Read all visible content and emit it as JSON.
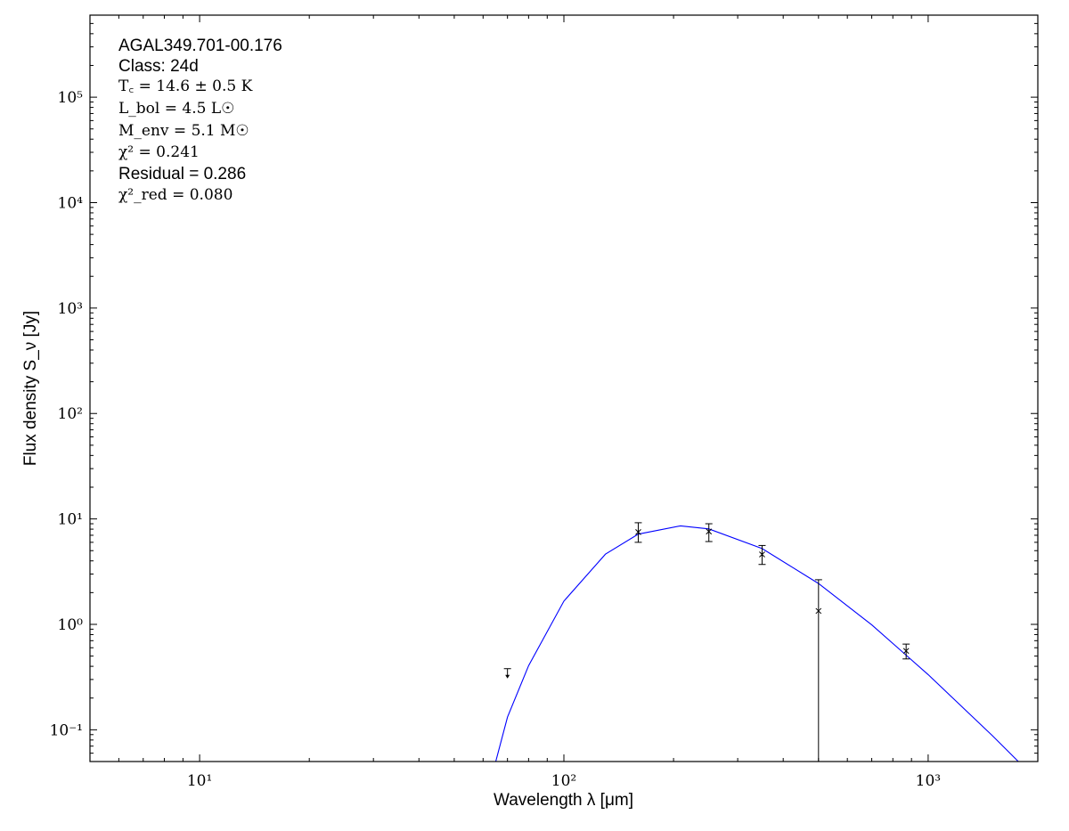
{
  "chart_data": {
    "type": "scatter",
    "title": "",
    "xlabel": "Wavelength λ [μm]",
    "ylabel": "Flux density S_ν [Jy]",
    "xscale": "log",
    "yscale": "log",
    "xlim": [
      5,
      2000
    ],
    "ylim": [
      0.05,
      600000
    ],
    "grid": false,
    "x_ticks": [
      {
        "value": 10,
        "label": "10¹"
      },
      {
        "value": 100,
        "label": "10²"
      },
      {
        "value": 1000,
        "label": "10³"
      }
    ],
    "y_ticks": [
      {
        "value": 0.1,
        "label": "10⁻¹"
      },
      {
        "value": 1,
        "label": "10⁰"
      },
      {
        "value": 10,
        "label": "10¹"
      },
      {
        "value": 100,
        "label": "10²"
      },
      {
        "value": 1000,
        "label": "10³"
      },
      {
        "value": 10000,
        "label": "10⁴"
      },
      {
        "value": 100000,
        "label": "10⁵"
      }
    ],
    "annotations": {
      "source": "AGAL349.701-00.176",
      "class": "Class: 24d",
      "tc": "T꜀ = 14.6 ± 0.5 K",
      "lbol": "L_bol = 4.5 L☉",
      "menv": "M_env = 5.1 M☉",
      "chi2": "χ² = 0.241",
      "residual": "Residual = 0.286",
      "chi2red": "χ²_red = 0.080"
    },
    "measurements": [
      {
        "x": 160,
        "y": 7.5,
        "ylow": 6.0,
        "yhigh": 9.2
      },
      {
        "x": 250,
        "y": 7.6,
        "ylow": 6.1,
        "yhigh": 9.0
      },
      {
        "x": 350,
        "y": 4.6,
        "ylow": 3.7,
        "yhigh": 5.6
      },
      {
        "x": 500,
        "y": 1.34,
        "ylow": 0.001,
        "yhigh": 2.65
      },
      {
        "x": 870,
        "y": 0.56,
        "ylow": 0.47,
        "yhigh": 0.65
      }
    ],
    "upper_limits": [
      {
        "x": 70,
        "y": 0.38
      }
    ],
    "model_curve": {
      "color": "#0000ff",
      "points": [
        [
          60,
          0.026
        ],
        [
          65,
          0.05
        ],
        [
          70,
          0.132
        ],
        [
          80,
          0.406
        ],
        [
          100,
          1.66
        ],
        [
          130,
          4.63
        ],
        [
          160,
          7.17
        ],
        [
          209,
          8.6
        ],
        [
          250,
          8.05
        ],
        [
          350,
          5.23
        ],
        [
          500,
          2.44
        ],
        [
          700,
          0.988
        ],
        [
          1000,
          0.334
        ],
        [
          1500,
          0.088
        ],
        [
          2000,
          0.0327
        ]
      ]
    }
  }
}
